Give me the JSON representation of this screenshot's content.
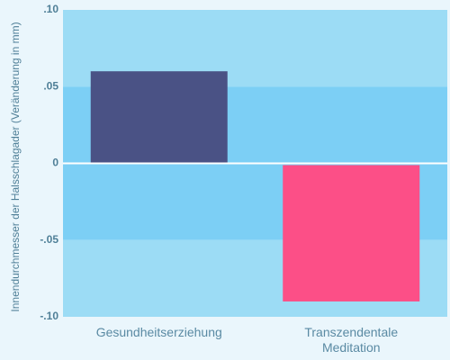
{
  "chart_data": {
    "type": "bar",
    "categories": [
      "Gesundheitserziehung",
      "Transzendentale Meditation"
    ],
    "category_lines": [
      [
        "Gesundheitserziehung"
      ],
      [
        "Transzendentale",
        "Meditation"
      ]
    ],
    "values": [
      0.06,
      -0.09
    ],
    "bar_colors": [
      "#4a5285",
      "#fc4f87"
    ],
    "ylabel": "Innendurchmesser der Halsschlagader (Veränderung in mm)",
    "ylim": [
      -0.1,
      0.1
    ],
    "yticks": [
      0.1,
      0.05,
      0,
      -0.05,
      -0.1
    ],
    "ytick_labels": [
      ".10",
      ".05",
      "0",
      "-.05",
      "-.10"
    ],
    "band_colors": [
      "#9cdcf5",
      "#7ccff5"
    ],
    "zero_line_color": "#ffffff"
  }
}
